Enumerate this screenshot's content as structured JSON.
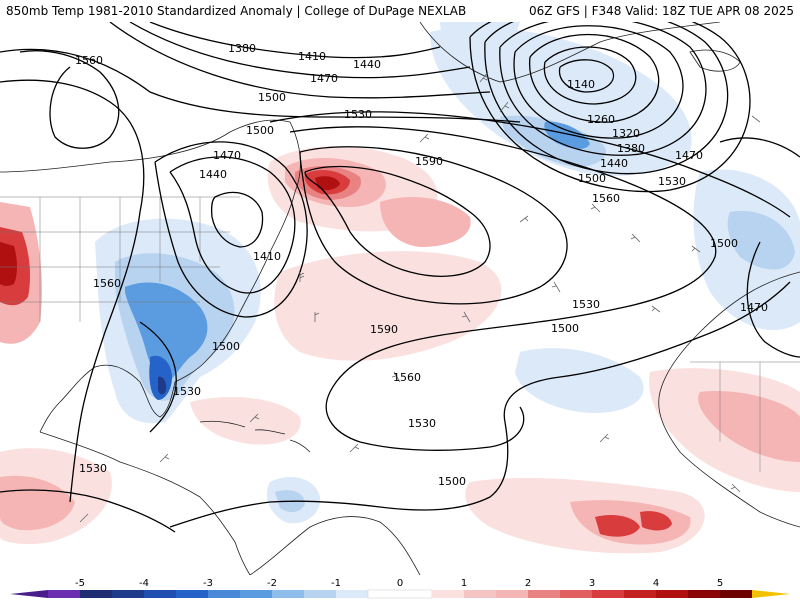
{
  "header": {
    "left_title": "850mb Temp 1981-2010 Standardized Anomaly | College of DuPage NEXLAB",
    "right_title": "06Z GFS | F348 Valid: 18Z TUE APR 08 2025"
  },
  "colors": {
    "background": "#ffffff",
    "neg5": "#4a1d8c",
    "neg4": "#1e3a8a",
    "neg3": "#2563c8",
    "neg2": "#5b9be0",
    "neg1": "#b7d3f0",
    "neg05": "#dbe9f8",
    "pos05": "#fbe0e0",
    "pos1": "#f5b5b5",
    "pos2": "#e98383",
    "pos3": "#d83c3c",
    "pos4": "#b01010",
    "pos5": "#6e0000",
    "pos6": "#f2c200",
    "contour": "#000000",
    "border": "#222222"
  },
  "colorbar": {
    "ticks": [
      "-5",
      "-4",
      "-3",
      "-2",
      "-1",
      "0",
      "1",
      "2",
      "3",
      "4",
      "5"
    ]
  },
  "contour_labels": [
    {
      "id": "1380-north",
      "text": "1380"
    },
    {
      "id": "1410-north",
      "text": "1410"
    },
    {
      "id": "1470-north",
      "text": "1470"
    },
    {
      "id": "1440-north",
      "text": "1440"
    },
    {
      "id": "1560-west",
      "text": "1560"
    },
    {
      "id": "1500-north",
      "text": "1500"
    },
    {
      "id": "1530-north",
      "text": "1530"
    },
    {
      "id": "1500-nw",
      "text": "1500"
    },
    {
      "id": "1470-west",
      "text": "1470"
    },
    {
      "id": "1440-west",
      "text": "1440"
    },
    {
      "id": "1590-mid",
      "text": "1590"
    },
    {
      "id": "1560-mid",
      "text": "1560"
    },
    {
      "id": "1410-low",
      "text": "1410"
    },
    {
      "id": "1140-low",
      "text": "1140"
    },
    {
      "id": "1260-low",
      "text": "1260"
    },
    {
      "id": "1320-low",
      "text": "1320"
    },
    {
      "id": "1380-low",
      "text": "1380"
    },
    {
      "id": "1440-low",
      "text": "1440"
    },
    {
      "id": "1500-low",
      "text": "1500"
    },
    {
      "id": "1530-ne",
      "text": "1530"
    },
    {
      "id": "1470-ne",
      "text": "1470"
    },
    {
      "id": "1500-east",
      "text": "1500"
    },
    {
      "id": "1470-east",
      "text": "1470"
    },
    {
      "id": "1560-gulf",
      "text": "1560"
    },
    {
      "id": "1530-atl",
      "text": "1530"
    },
    {
      "id": "1590-atl",
      "text": "1590"
    },
    {
      "id": "1500-atl",
      "text": "1500"
    },
    {
      "id": "1500-se",
      "text": "1500"
    },
    {
      "id": "1560-atl2",
      "text": "1560"
    },
    {
      "id": "1530-florida",
      "text": "1530"
    },
    {
      "id": "1530-carib",
      "text": "1530"
    },
    {
      "id": "1530-pacific",
      "text": "1530"
    },
    {
      "id": "1500-south",
      "text": "1500"
    }
  ]
}
